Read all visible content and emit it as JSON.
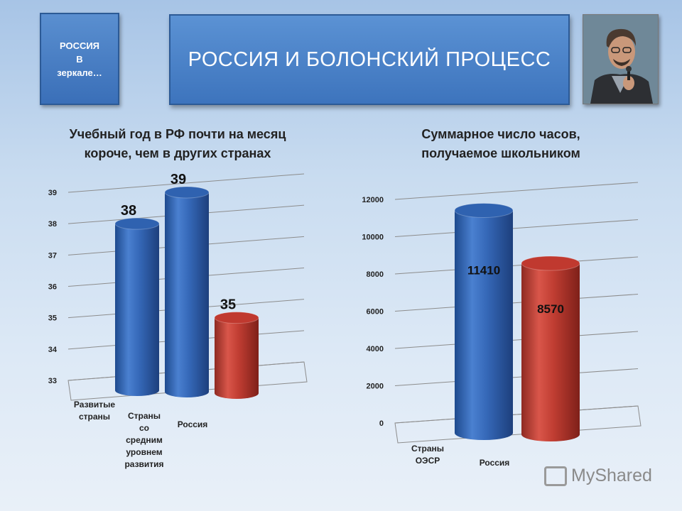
{
  "side_box": {
    "line1": "РОССИЯ",
    "line2": "В",
    "line3": "зеркале…"
  },
  "header": {
    "title": "РОССИЯ И БОЛОНСКИЙ ПРОЦЕСС"
  },
  "charts": [
    {
      "title_line1": "Учебный год в РФ почти на месяц",
      "title_line2": "короче, чем в других странах",
      "category_lines": [
        [
          "Развитые",
          "страны"
        ],
        [
          "Страны",
          "со",
          "средним",
          "уровнем",
          "развития"
        ],
        [
          "Россия"
        ]
      ]
    },
    {
      "title_line1": "Суммарное число часов,",
      "title_line2": "получаемое школьником",
      "category_lines": [
        [
          "Страны",
          "ОЭСР"
        ],
        [
          "Россия"
        ]
      ]
    }
  ],
  "chart_data": [
    {
      "type": "bar",
      "title": "Учебный год в РФ почти на месяц короче, чем в других странах",
      "categories": [
        "Развитые страны",
        "Страны со средним уровнем развития",
        "Россия"
      ],
      "values": [
        38,
        39,
        35
      ],
      "colors": [
        "#2f62b0",
        "#2f62b0",
        "#c0392f"
      ],
      "ylim": [
        33,
        39
      ],
      "yticks": [
        33,
        34,
        35,
        36,
        37,
        38,
        39
      ],
      "grid": true
    },
    {
      "type": "bar",
      "title": "Суммарное число часов, получаемое школьником",
      "categories": [
        "Страны ОЭСР",
        "Россия"
      ],
      "values": [
        11410,
        8570
      ],
      "colors": [
        "#2f62b0",
        "#c0392f"
      ],
      "ylim": [
        0,
        12000
      ],
      "yticks": [
        0,
        2000,
        4000,
        6000,
        8000,
        10000,
        12000
      ],
      "grid": true
    }
  ],
  "watermark": {
    "text": "MyShared"
  }
}
